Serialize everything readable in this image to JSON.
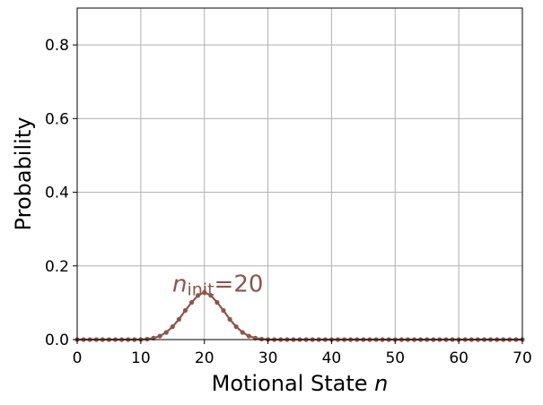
{
  "chart_data": {
    "type": "line",
    "title": "",
    "xlabel": "Motional State",
    "xlabel_var": "n",
    "ylabel": "Probability",
    "xlim": [
      0,
      70
    ],
    "ylim": [
      0,
      0.9
    ],
    "xticks": [
      "0",
      "10",
      "20",
      "30",
      "40",
      "50",
      "60",
      "70"
    ],
    "yticks": [
      "0.0",
      "0.2",
      "0.4",
      "0.6",
      "0.8"
    ],
    "grid": true,
    "legend": "none",
    "series": [
      {
        "color": "#8c564b",
        "marker": "circle",
        "x": [
          0,
          1,
          2,
          3,
          4,
          5,
          6,
          7,
          8,
          9,
          10,
          11,
          12,
          13,
          14,
          15,
          16,
          17,
          18,
          19,
          20,
          21,
          22,
          23,
          24,
          25,
          26,
          27,
          28,
          29,
          30,
          31,
          32,
          33,
          34,
          35,
          36,
          37,
          38,
          39,
          40,
          41,
          42,
          43,
          44,
          45,
          46,
          47,
          48,
          49,
          50,
          51,
          52,
          53,
          54,
          55,
          56,
          57,
          58,
          59,
          60,
          61,
          62,
          63,
          64,
          65,
          66,
          67,
          68,
          69,
          70
        ],
        "y": [
          0,
          0,
          0,
          0,
          0,
          0,
          0,
          0,
          0,
          0,
          0.0003,
          0.0013,
          0.004,
          0.0095,
          0.0195,
          0.035,
          0.055,
          0.079,
          0.101,
          0.12,
          0.128,
          0.12,
          0.101,
          0.079,
          0.055,
          0.035,
          0.0195,
          0.0095,
          0.004,
          0.0013,
          0.0003,
          0,
          0,
          0,
          0,
          0,
          0,
          0,
          0,
          0,
          0,
          0,
          0,
          0,
          0,
          0,
          0,
          0,
          0,
          0,
          0,
          0,
          0,
          0,
          0,
          0,
          0,
          0,
          0,
          0,
          0,
          0,
          0,
          0,
          0,
          0,
          0,
          0,
          0,
          0,
          0
        ]
      }
    ],
    "annotation": {
      "var": "n",
      "sub": "init",
      "eq": "=20",
      "x": 20,
      "y": 0.15,
      "color": "#8c564b"
    }
  }
}
